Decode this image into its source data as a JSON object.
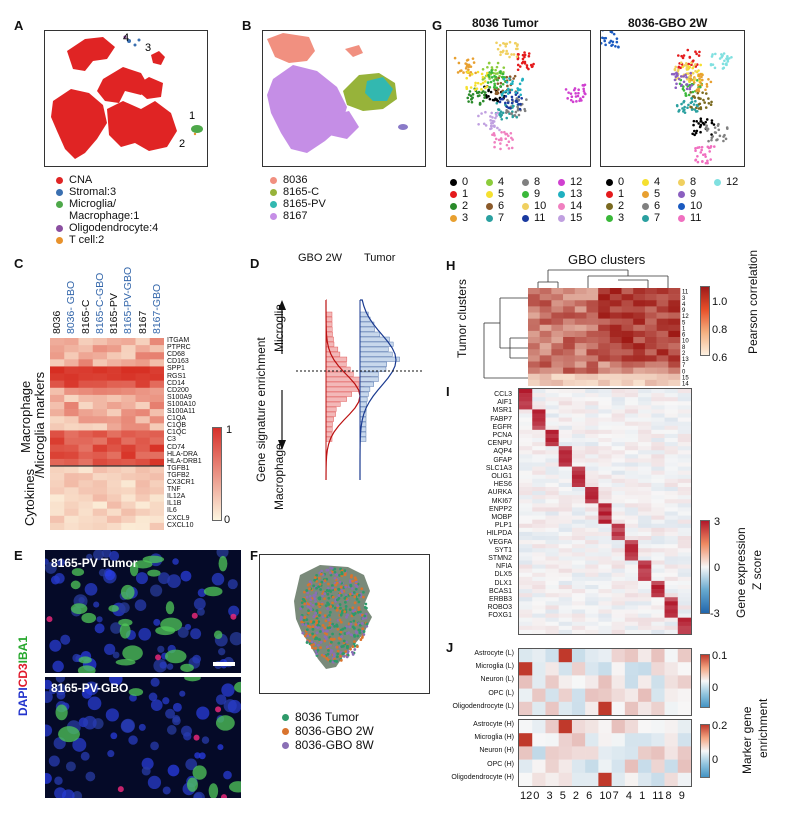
{
  "panels": {
    "A": {
      "label": "A",
      "annotations": [
        "4",
        "3",
        "1",
        "2"
      ],
      "legend": [
        {
          "label": "CNA",
          "color": "#e02424"
        },
        {
          "label": "Stromal:3",
          "color": "#3a6fb0"
        },
        {
          "label": "Microglia/",
          "color": "#4ea84a"
        },
        {
          "label": "Macrophage:1",
          "color": ""
        },
        {
          "label": "Oligodendrocyte:4",
          "color": "#8b4fa0"
        },
        {
          "label": "T cell:2",
          "color": "#e8922c"
        }
      ]
    },
    "B": {
      "label": "B",
      "legend": [
        {
          "label": "8036",
          "color": "#f19080"
        },
        {
          "label": "8165-C",
          "color": "#97b33a"
        },
        {
          "label": "8165-PV",
          "color": "#32b8b0"
        },
        {
          "label": "8167",
          "color": "#c58ee6"
        }
      ]
    },
    "C": {
      "label": "C",
      "columns": [
        {
          "label": "8036",
          "color": "#111"
        },
        {
          "label": "8036- GBO",
          "color": "#3366aa"
        },
        {
          "label": "8165-C",
          "color": "#111"
        },
        {
          "label": "8165-C-GBO",
          "color": "#3366aa"
        },
        {
          "label": "8165-PV",
          "color": "#111"
        },
        {
          "label": "8165-PV-GBO",
          "color": "#3366aa"
        },
        {
          "label": "8167",
          "color": "#111"
        },
        {
          "label": "8167-GBO",
          "color": "#3366aa"
        }
      ],
      "genes_macrophage": [
        "ITGAM",
        "PTPRC",
        "CD68",
        "CD163",
        "SPP1",
        "RGS1",
        "CD14",
        "CD200",
        "S100A9",
        "S100A10",
        "S100A11",
        "C1QA",
        "C1QB",
        "C1QC",
        "C3",
        "CD74",
        "HLA-DRA",
        "HLA-DRB1"
      ],
      "genes_cytokines": [
        "TGFB1",
        "TGFB2",
        "CX3CR1",
        "TNF",
        "IL12A",
        "IL1B",
        "IL6",
        "CXCL9",
        "CXCL10"
      ],
      "group_macrophage": "Macrophage",
      "group_macrophage2": "/Microglia markers",
      "group_cytokines": "Cytokines",
      "scale_max": "1",
      "scale_min": "0"
    },
    "D": {
      "label": "D",
      "col1": "GBO 2W",
      "col2": "Tumor",
      "ylabel": "Gene signature enrichment",
      "top": "Microglia",
      "bottom": "Macrophage"
    },
    "E": {
      "label": "E",
      "top_title": "8165-PV Tumor",
      "bottom_title": "8165-PV-GBO",
      "side_label": {
        "dapi": "DAPI",
        "cd3": "CD3",
        "iba1": "IBA1"
      }
    },
    "F": {
      "label": "F",
      "legend": [
        {
          "label": "8036 Tumor",
          "color": "#2e9a6a"
        },
        {
          "label": "8036-GBO 2W",
          "color": "#d9742e"
        },
        {
          "label": "8036-GBO 8W",
          "color": "#8a6fb5"
        }
      ]
    },
    "G": {
      "label": "G",
      "title_left": "8036 Tumor",
      "title_right": "8036-GBO 2W",
      "legend_left": [
        {
          "label": "0",
          "color": "#000000"
        },
        {
          "label": "1",
          "color": "#e41a1c"
        },
        {
          "label": "2",
          "color": "#2a8a2a"
        },
        {
          "label": "3",
          "color": "#e8a030"
        },
        {
          "label": "4",
          "color": "#8ccc3c"
        },
        {
          "label": "5",
          "color": "#f5e030"
        },
        {
          "label": "6",
          "color": "#8b5a2b"
        },
        {
          "label": "7",
          "color": "#2aa0a0"
        },
        {
          "label": "8",
          "color": "#808080"
        },
        {
          "label": "9",
          "color": "#3ab83a"
        },
        {
          "label": "10",
          "color": "#f0d060"
        },
        {
          "label": "11",
          "color": "#1a3aa0"
        },
        {
          "label": "12",
          "color": "#d040d0"
        },
        {
          "label": "13",
          "color": "#20b0c0"
        },
        {
          "label": "14",
          "color": "#f080c0"
        },
        {
          "label": "15",
          "color": "#c0a0e0"
        }
      ],
      "legend_right": [
        {
          "label": "0",
          "color": "#000000"
        },
        {
          "label": "1",
          "color": "#e41a1c"
        },
        {
          "label": "2",
          "color": "#7a6a20"
        },
        {
          "label": "3",
          "color": "#3ab83a"
        },
        {
          "label": "4",
          "color": "#f5e030"
        },
        {
          "label": "5",
          "color": "#e8a030"
        },
        {
          "label": "6",
          "color": "#808080"
        },
        {
          "label": "7",
          "color": "#2aa0a0"
        },
        {
          "label": "8",
          "color": "#f0d060"
        },
        {
          "label": "9",
          "color": "#8b5fc0"
        },
        {
          "label": "10",
          "color": "#1a5ac0"
        },
        {
          "label": "11",
          "color": "#f070c0"
        },
        {
          "label": "12",
          "color": "#80e0e0"
        }
      ]
    },
    "H": {
      "label": "H",
      "title": "GBO clusters",
      "ylabel": "Tumor clusters",
      "cbar_label": "Pearson correlation",
      "ticks": [
        "1.0",
        "0.8",
        "0.6"
      ],
      "row_labels": [
        "11",
        "3",
        "4",
        "9",
        "12",
        "5",
        "1",
        "6",
        "10",
        "8",
        "2",
        "13",
        "7",
        "0",
        "15",
        "14"
      ]
    },
    "I": {
      "label": "I",
      "genes": [
        "CCL3",
        "AIF1",
        "MSR1",
        "FABP7",
        "EGFR",
        "PCNA",
        "CENPU",
        "AQP4",
        "GFAP",
        "SLC1A3",
        "OLIG1",
        "HES6",
        "AURKA",
        "MKI67",
        "ENPP2",
        "MOBP",
        "PLP1",
        "HILPDA",
        "VEGFA",
        "SYT1",
        "STMN2",
        "NFIA",
        "DLX5",
        "DLX1",
        "BCAS1",
        "ERBB3",
        "ROBO3",
        "FOXG1"
      ],
      "cbar_label1": "Gene expression",
      "cbar_label2": "Z score",
      "ticks": [
        "3",
        "0",
        "-3"
      ]
    },
    "J": {
      "label": "J",
      "rows_L": [
        "Astrocyte (L)",
        "Microglia (L)",
        "Neuron (L)",
        "OPC (L)",
        "Oligodendrocyte (L)"
      ],
      "rows_H": [
        "Astrocyte (H)",
        "Microglia (H)",
        "Neuron (H)",
        "OPC (H)",
        "Oligodendrocyte (H)"
      ],
      "columns": [
        "12",
        "0",
        "3",
        "5",
        "2",
        "6",
        "10",
        "7",
        "4",
        "1",
        "11",
        "8",
        "9"
      ],
      "cbar_label1": "Marker gene",
      "cbar_label2": "enrichment",
      "ticks_L": [
        "0.1",
        "0"
      ],
      "ticks_H": [
        "0.2",
        "0"
      ]
    }
  }
}
